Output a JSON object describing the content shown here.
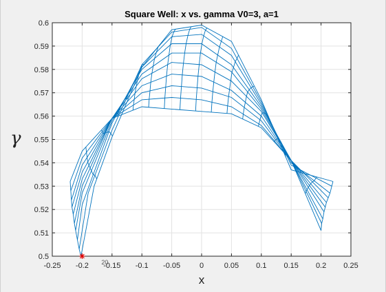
{
  "chart_data": {
    "type": "line",
    "title": "Square Well: x vs. gamma V0=3, a=1",
    "xlabel": "x",
    "ylabel": "γ",
    "xlim": [
      -0.25,
      0.25
    ],
    "ylim": [
      0.5,
      0.6
    ],
    "xticks": [
      "-0.25",
      "-0.2",
      "-0.15",
      "-0.1",
      "-0.05",
      "0",
      "0.05",
      "0.1",
      "0.15",
      "0.2",
      "0.25"
    ],
    "yticks": [
      "0.5",
      "0.51",
      "0.52",
      "0.53",
      "0.54",
      "0.55",
      "0.56",
      "0.57",
      "0.58",
      "0.59",
      "0.6"
    ],
    "grid": true,
    "series": [
      {
        "values": [
          [
            -0.22,
            0.532
          ],
          [
            -0.2,
            0.545
          ],
          [
            -0.15,
            0.559
          ],
          [
            -0.1,
            0.564
          ],
          [
            -0.05,
            0.563
          ],
          [
            0,
            0.562
          ],
          [
            0.05,
            0.561
          ],
          [
            0.1,
            0.555
          ],
          [
            0.15,
            0.541
          ],
          [
            0.2,
            0.511
          ]
        ]
      },
      {
        "values": [
          [
            -0.219,
            0.528
          ],
          [
            -0.2,
            0.542
          ],
          [
            -0.15,
            0.559
          ],
          [
            -0.1,
            0.567
          ],
          [
            -0.05,
            0.568
          ],
          [
            0,
            0.567
          ],
          [
            0.05,
            0.564
          ],
          [
            0.1,
            0.556
          ],
          [
            0.15,
            0.541
          ],
          [
            0.201,
            0.514
          ]
        ]
      },
      {
        "values": [
          [
            -0.218,
            0.524
          ],
          [
            -0.2,
            0.539
          ],
          [
            -0.15,
            0.559
          ],
          [
            -0.1,
            0.57
          ],
          [
            -0.05,
            0.573
          ],
          [
            0,
            0.572
          ],
          [
            0.05,
            0.568
          ],
          [
            0.1,
            0.558
          ],
          [
            0.15,
            0.541
          ],
          [
            0.203,
            0.516
          ]
        ]
      },
      {
        "values": [
          [
            -0.217,
            0.521
          ],
          [
            -0.2,
            0.536
          ],
          [
            -0.15,
            0.559
          ],
          [
            -0.1,
            0.573
          ],
          [
            -0.05,
            0.578
          ],
          [
            0,
            0.577
          ],
          [
            0.05,
            0.571
          ],
          [
            0.1,
            0.56
          ],
          [
            0.15,
            0.541
          ],
          [
            0.205,
            0.519
          ]
        ]
      },
      {
        "values": [
          [
            -0.215,
            0.518
          ],
          [
            -0.2,
            0.533
          ],
          [
            -0.15,
            0.559
          ],
          [
            -0.1,
            0.576
          ],
          [
            -0.05,
            0.583
          ],
          [
            0,
            0.582
          ],
          [
            0.05,
            0.575
          ],
          [
            0.1,
            0.562
          ],
          [
            0.15,
            0.541
          ],
          [
            0.207,
            0.521
          ]
        ]
      },
      {
        "values": [
          [
            -0.213,
            0.514
          ],
          [
            -0.2,
            0.53
          ],
          [
            -0.15,
            0.559
          ],
          [
            -0.1,
            0.578
          ],
          [
            -0.05,
            0.587
          ],
          [
            0,
            0.587
          ],
          [
            0.05,
            0.579
          ],
          [
            0.1,
            0.563
          ],
          [
            0.15,
            0.541
          ],
          [
            0.209,
            0.523
          ]
        ]
      },
      {
        "values": [
          [
            -0.211,
            0.511
          ],
          [
            -0.2,
            0.527
          ],
          [
            -0.15,
            0.558
          ],
          [
            -0.1,
            0.58
          ],
          [
            -0.05,
            0.591
          ],
          [
            0,
            0.591
          ],
          [
            0.05,
            0.582
          ],
          [
            0.1,
            0.564
          ],
          [
            0.15,
            0.541
          ],
          [
            0.212,
            0.525
          ]
        ]
      },
      {
        "values": [
          [
            -0.208,
            0.507
          ],
          [
            -0.2,
            0.522
          ],
          [
            -0.15,
            0.557
          ],
          [
            -0.1,
            0.581
          ],
          [
            -0.05,
            0.594
          ],
          [
            0,
            0.595
          ],
          [
            0.05,
            0.586
          ],
          [
            0.1,
            0.565
          ],
          [
            0.15,
            0.54
          ],
          [
            0.215,
            0.527
          ]
        ]
      },
      {
        "values": [
          [
            -0.205,
            0.503
          ],
          [
            -0.19,
            0.527
          ],
          [
            -0.15,
            0.554
          ],
          [
            -0.1,
            0.582
          ],
          [
            -0.05,
            0.596
          ],
          [
            0,
            0.598
          ],
          [
            0.05,
            0.589
          ],
          [
            0.1,
            0.566
          ],
          [
            0.15,
            0.539
          ],
          [
            0.218,
            0.53
          ]
        ]
      },
      {
        "values": [
          [
            -0.202,
            0.5
          ],
          [
            -0.18,
            0.53
          ],
          [
            -0.15,
            0.551
          ],
          [
            -0.1,
            0.581
          ],
          [
            -0.05,
            0.597
          ],
          [
            0,
            0.599
          ],
          [
            0.05,
            0.592
          ],
          [
            0.1,
            0.567
          ],
          [
            0.15,
            0.537
          ],
          [
            0.22,
            0.532
          ]
        ]
      }
    ],
    "marker": {
      "x": -0.2,
      "y": 0.5,
      "label": "20"
    }
  }
}
